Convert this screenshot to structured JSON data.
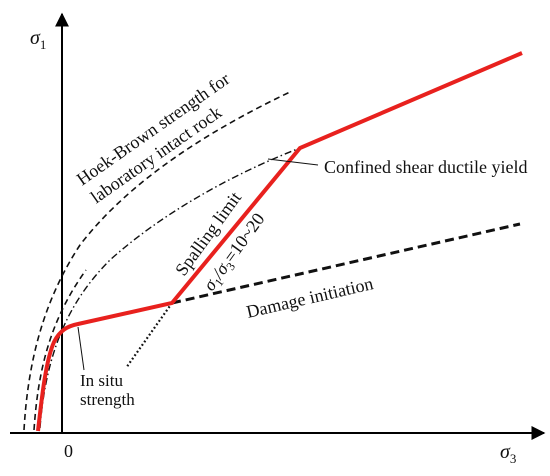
{
  "axes": {
    "y_symbol": "σ",
    "y_sub": "1",
    "x_symbol": "σ",
    "x_sub": "3",
    "origin": "0"
  },
  "curves": {
    "hoek_brown": "Hoek-Brown strength for",
    "hoek_brown_line2": "laboratory intact rock",
    "confined_shear": "Confined shear ductile yield",
    "spalling": "Spalling limit",
    "ratio_sigma1": "σ",
    "ratio_sub1": "1",
    "ratio_slash": "/σ",
    "ratio_sub3": "3",
    "ratio_value": "=10~20",
    "damage": "Damage initiation",
    "insitu": "In situ",
    "insitu_line2": "strength"
  },
  "colors": {
    "envelope": "#e8211e",
    "ink": "#111111"
  }
}
